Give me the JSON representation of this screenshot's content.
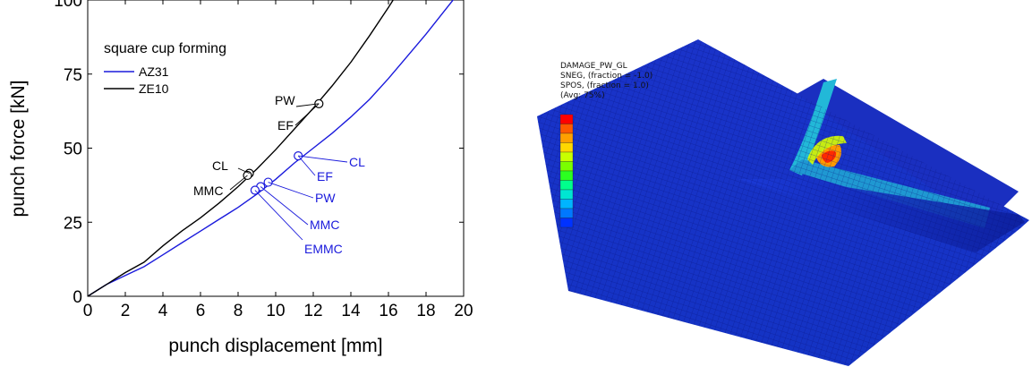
{
  "chart_data": {
    "type": "line",
    "title": "",
    "xlabel": "punch displacement [mm]",
    "ylabel": "punch force [kN]",
    "xlim": [
      0,
      20
    ],
    "ylim": [
      0,
      100
    ],
    "xticks": [
      0,
      2,
      4,
      6,
      8,
      10,
      12,
      14,
      16,
      18,
      20
    ],
    "yticks": [
      0,
      25,
      50,
      75,
      100
    ],
    "grid": false,
    "legend": {
      "title": "square cup forming",
      "placement": "top-left"
    },
    "series": [
      {
        "name": "AZ31",
        "color": "#1a1adc",
        "x": [
          0,
          0.5,
          1,
          1.5,
          2,
          3,
          4,
          5,
          6,
          7,
          8,
          9,
          10,
          11,
          12,
          13,
          14,
          15,
          16,
          17,
          18,
          19,
          20
        ],
        "y": [
          0,
          2,
          4,
          5.5,
          7,
          10,
          14,
          18,
          22,
          26,
          30,
          34.5,
          39.5,
          45,
          50,
          55,
          60.5,
          66.5,
          73.5,
          81,
          88.5,
          96.5,
          104.5
        ],
        "markers": [
          {
            "label": "CL",
            "x": 11.2,
            "y": 47.4
          },
          {
            "label": "EF",
            "x": 11.2,
            "y": 47.4
          },
          {
            "label": "PW",
            "x": 9.6,
            "y": 38.5
          },
          {
            "label": "MMC",
            "x": 9.2,
            "y": 37.0
          },
          {
            "label": "EMMC",
            "x": 8.9,
            "y": 35.8
          }
        ]
      },
      {
        "name": "ZE10",
        "color": "#000000",
        "x": [
          0,
          0.5,
          1,
          1.5,
          2,
          3,
          4,
          5,
          6,
          7,
          8,
          9,
          10,
          11,
          12,
          13,
          14,
          15,
          16,
          16.5,
          17
        ],
        "y": [
          0,
          2,
          4,
          6,
          8,
          11.5,
          17,
          22,
          26.5,
          31.5,
          37,
          43,
          49.5,
          56.5,
          63.5,
          71,
          79,
          88,
          97.5,
          102.5,
          108
        ],
        "markers": [
          {
            "label": "PW",
            "x": 12.3,
            "y": 65.0
          },
          {
            "label": "EF",
            "x": 12.3,
            "y": 65.0
          },
          {
            "label": "CL",
            "x": 8.6,
            "y": 41.5
          },
          {
            "label": "MMC",
            "x": 8.5,
            "y": 40.8
          }
        ]
      }
    ]
  },
  "fe_image": {
    "legend_lines": [
      "DAMAGE_PW_GL",
      "SNEG, (fraction = -1.0)",
      "SPOS, (fraction = 1.0)",
      "(Avg: 75%)"
    ],
    "contour_colors": [
      "#ff0000",
      "#ff5a00",
      "#ffa000",
      "#ffd800",
      "#c8ff00",
      "#7aff00",
      "#2cff20",
      "#00ff8c",
      "#00e6d2",
      "#00b4ff",
      "#0078ff",
      "#0032ff"
    ]
  }
}
